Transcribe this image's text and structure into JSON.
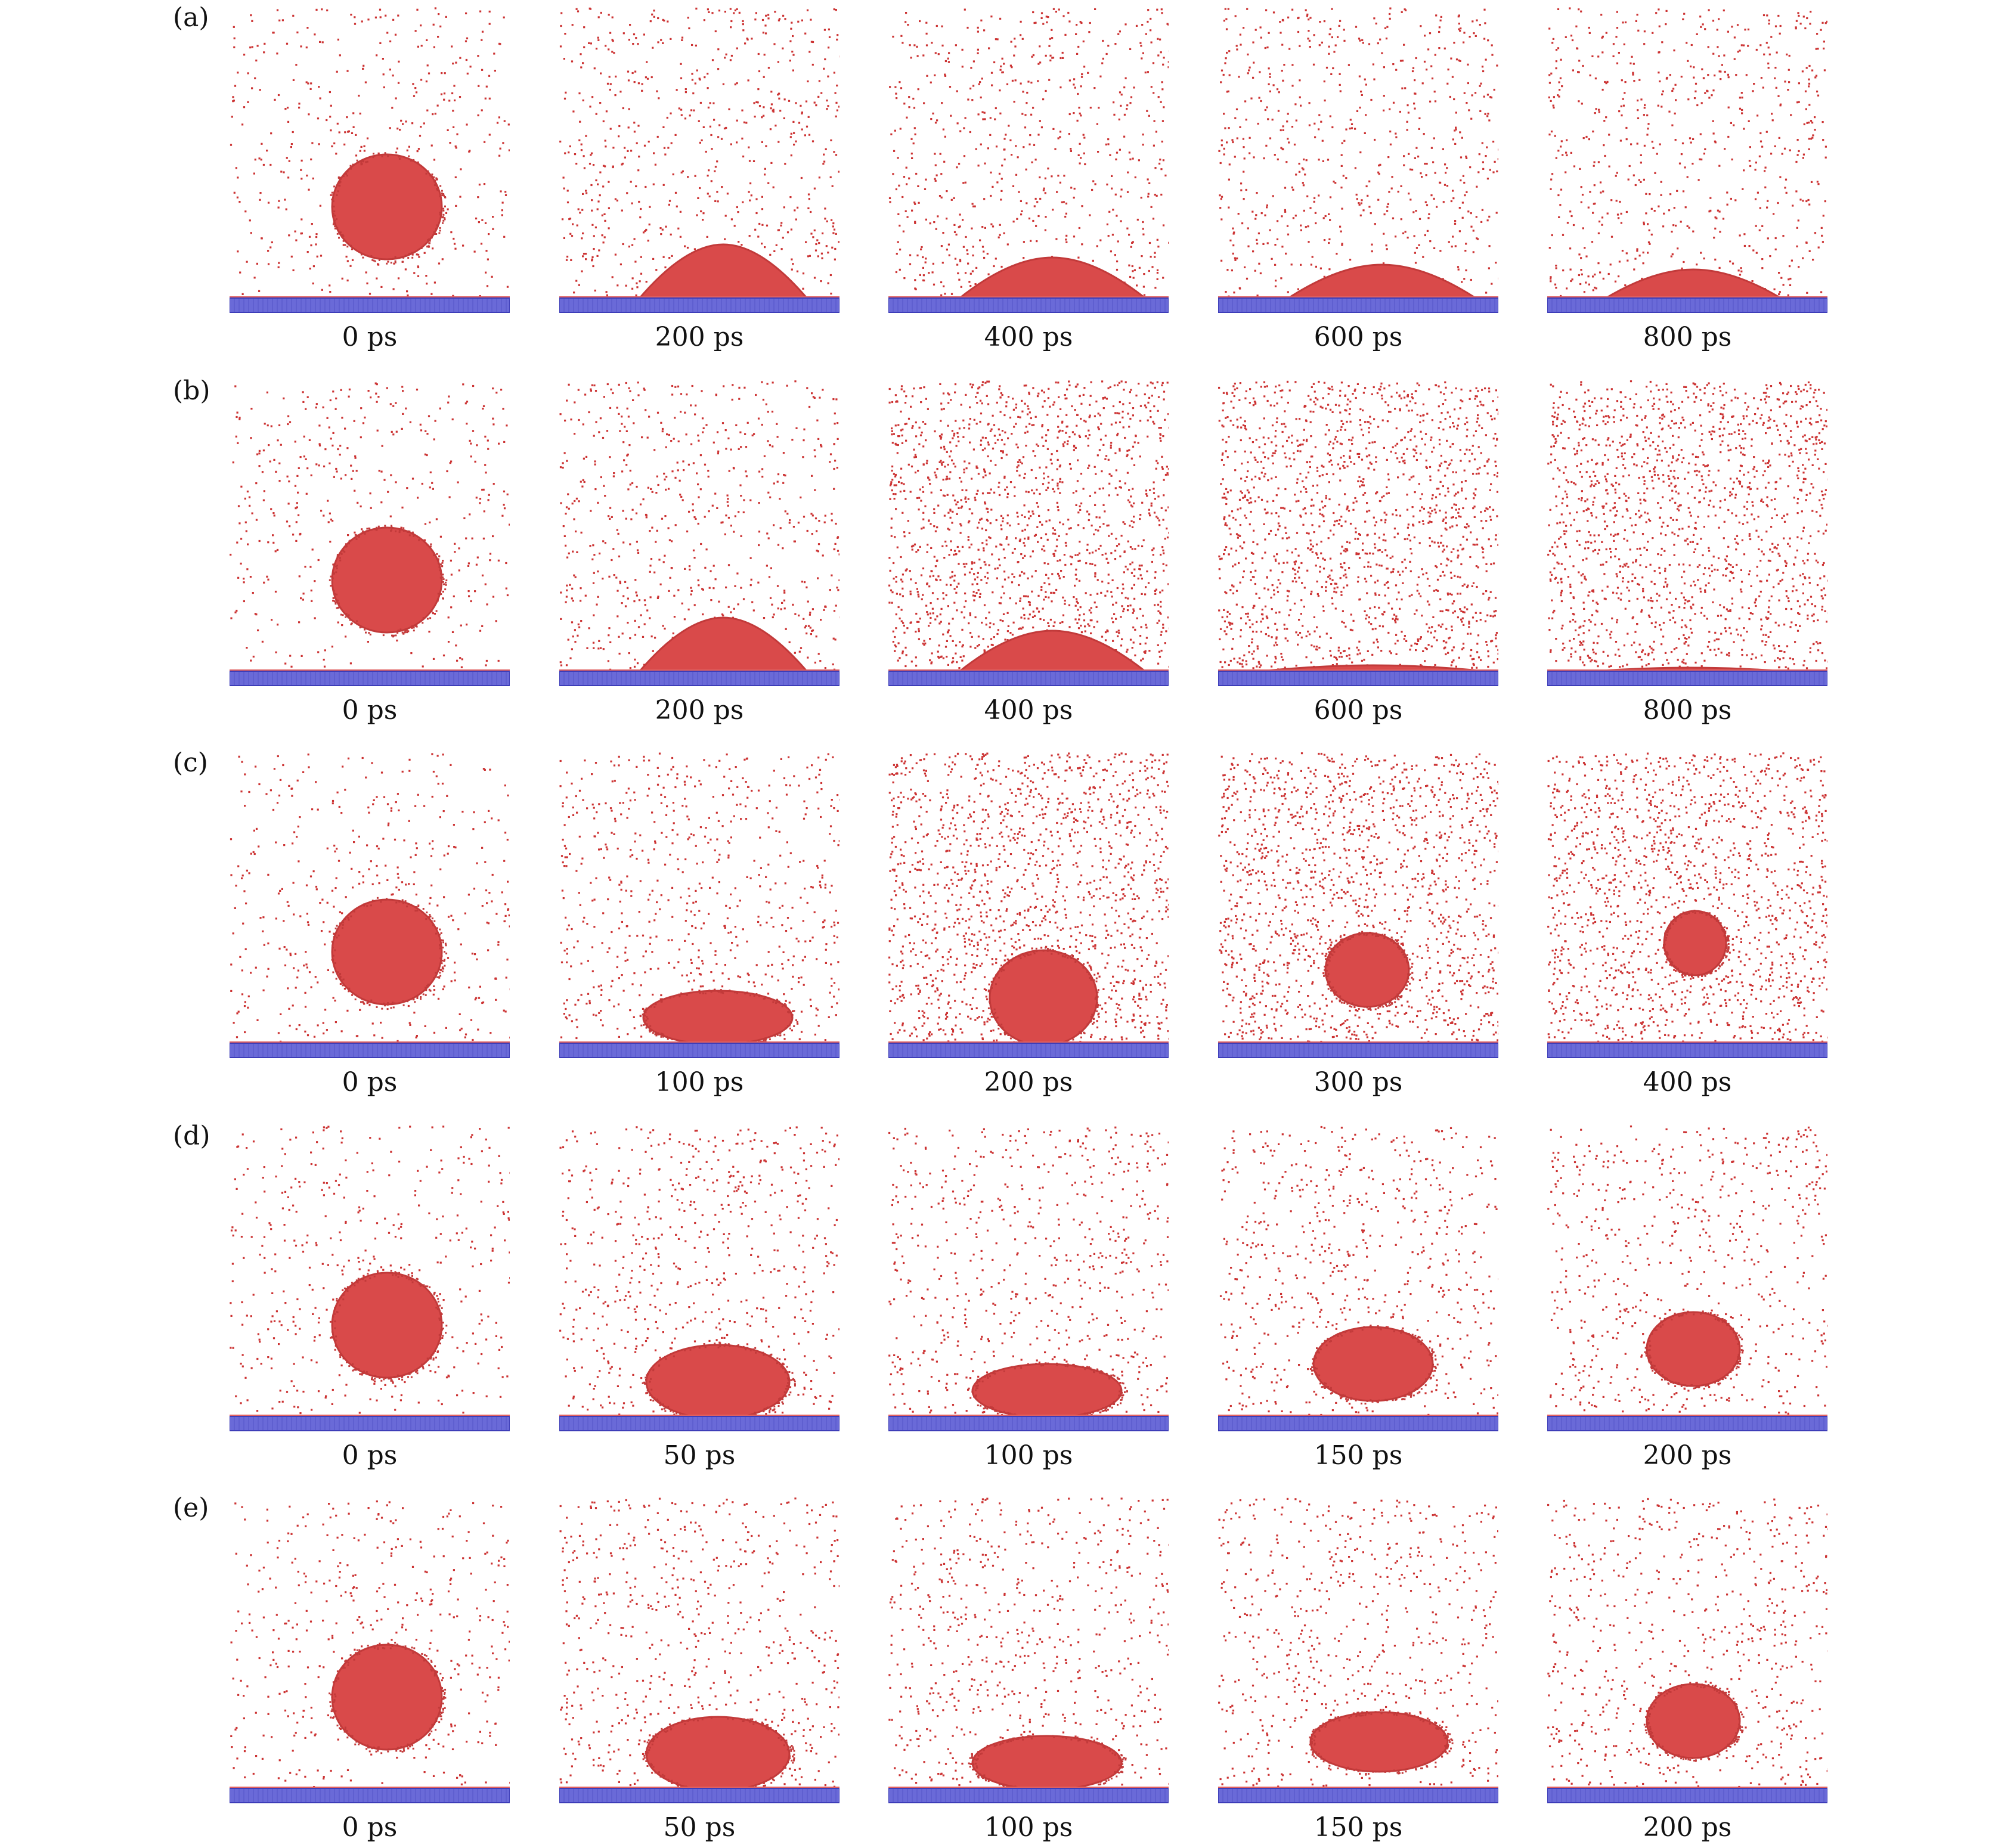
{
  "figure": {
    "colors": {
      "droplet": "#d94a4a",
      "droplet_edge": "#c23a3a",
      "vapor_dot": "#cc3333",
      "substrate": "#6a6ad8",
      "substrate_edge": "#3d3db8",
      "interface": "#e06060"
    },
    "rows": [
      {
        "label": "(a)",
        "frames": [
          {
            "time": "0 ps",
            "state": "sphere",
            "vapor": "low"
          },
          {
            "time": "200 ps",
            "state": "cap",
            "vapor": "medium"
          },
          {
            "time": "400 ps",
            "state": "cap-flat",
            "vapor": "medium"
          },
          {
            "time": "600 ps",
            "state": "cap-flatter",
            "vapor": "medium"
          },
          {
            "time": "800 ps",
            "state": "cap-thin",
            "vapor": "medium"
          }
        ]
      },
      {
        "label": "(b)",
        "frames": [
          {
            "time": "0 ps",
            "state": "sphere",
            "vapor": "low"
          },
          {
            "time": "200 ps",
            "state": "cap",
            "vapor": "medium"
          },
          {
            "time": "400 ps",
            "state": "cap-flat",
            "vapor": "high"
          },
          {
            "time": "600 ps",
            "state": "film",
            "vapor": "high"
          },
          {
            "time": "800 ps",
            "state": "film-thin",
            "vapor": "high"
          }
        ]
      },
      {
        "label": "(c)",
        "frames": [
          {
            "time": "0 ps",
            "state": "sphere",
            "vapor": "low"
          },
          {
            "time": "100 ps",
            "state": "pancake",
            "vapor": "medium"
          },
          {
            "time": "200 ps",
            "state": "lifting",
            "vapor": "high"
          },
          {
            "time": "300 ps",
            "state": "hover-small",
            "vapor": "high"
          },
          {
            "time": "400 ps",
            "state": "detached-small",
            "vapor": "high"
          }
        ]
      },
      {
        "label": "(d)",
        "frames": [
          {
            "time": "0 ps",
            "state": "sphere",
            "vapor": "low"
          },
          {
            "time": "50 ps",
            "state": "pancake-tall",
            "vapor": "medium"
          },
          {
            "time": "100 ps",
            "state": "pancake",
            "vapor": "medium"
          },
          {
            "time": "150 ps",
            "state": "hover",
            "vapor": "medium"
          },
          {
            "time": "200 ps",
            "state": "detached",
            "vapor": "medium"
          }
        ]
      },
      {
        "label": "(e)",
        "frames": [
          {
            "time": "0 ps",
            "state": "sphere",
            "vapor": "low"
          },
          {
            "time": "50 ps",
            "state": "pancake-tall",
            "vapor": "medium"
          },
          {
            "time": "100 ps",
            "state": "pancake",
            "vapor": "medium"
          },
          {
            "time": "150 ps",
            "state": "hover-wide",
            "vapor": "medium"
          },
          {
            "time": "200 ps",
            "state": "detached",
            "vapor": "medium"
          }
        ]
      }
    ]
  }
}
